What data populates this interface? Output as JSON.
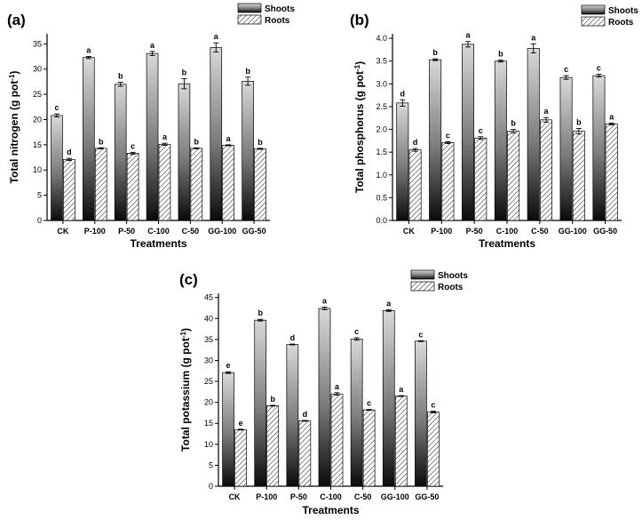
{
  "panels": [
    {
      "label": "(a)"
    },
    {
      "label": "(b)"
    },
    {
      "label": "(c)"
    }
  ],
  "colors": {
    "shoots_top": "#d9d9d9",
    "shoots_bottom": "#0a0a0a",
    "roots_hatch": "#444444",
    "axis": "#000000"
  },
  "chart_data": [
    {
      "type": "bar",
      "title": "(a)",
      "xlabel": "Treatments",
      "ylabel_main": "Total nitrogen (g pot",
      "ylabel_sup": "-1",
      "ylabel_close": ")",
      "categories": [
        "CK",
        "P-100",
        "P-50",
        "C-100",
        "C-50",
        "GG-100",
        "GG-50"
      ],
      "ylim": [
        0,
        37
      ],
      "yticks": [
        0,
        5,
        10,
        15,
        20,
        25,
        30,
        35
      ],
      "legend": [
        "Shoots",
        "Roots"
      ],
      "series": [
        {
          "name": "Shoots",
          "values": [
            20.8,
            32.3,
            27.0,
            33.1,
            27.1,
            34.3,
            27.6
          ],
          "errors": [
            0.3,
            0.2,
            0.4,
            0.4,
            1.0,
            0.9,
            0.8
          ],
          "letters": [
            "c",
            "a",
            "b",
            "a",
            "b",
            "a",
            "b"
          ]
        },
        {
          "name": "Roots",
          "values": [
            12.1,
            14.3,
            13.3,
            15.1,
            14.3,
            14.9,
            14.2
          ],
          "errors": [
            0.2,
            0.1,
            0.2,
            0.2,
            0.1,
            0.1,
            0.1
          ],
          "letters": [
            "d",
            "b",
            "c",
            "a",
            "b",
            "a",
            "b"
          ]
        }
      ]
    },
    {
      "type": "bar",
      "title": "(b)",
      "xlabel": "Treatments",
      "ylabel_main": "Total phosphorus (g pot",
      "ylabel_sup": "-1",
      "ylabel_close": ")",
      "categories": [
        "CK",
        "P-100",
        "P-50",
        "C-100",
        "C-50",
        "GG-100",
        "GG-50"
      ],
      "ylim": [
        0,
        4.1
      ],
      "yticks": [
        "0.0",
        "0.5",
        "1.0",
        "1.5",
        "2.0",
        "2.5",
        "3.0",
        "3.5",
        "4.0"
      ],
      "legend": [
        "Shoots",
        "Roots"
      ],
      "series": [
        {
          "name": "Shoots",
          "values": [
            2.58,
            3.53,
            3.87,
            3.5,
            3.78,
            3.14,
            3.18
          ],
          "errors": [
            0.07,
            0.02,
            0.06,
            0.02,
            0.1,
            0.04,
            0.03
          ],
          "letters": [
            "d",
            "b",
            "a",
            "b",
            "a",
            "c",
            "c"
          ]
        },
        {
          "name": "Roots",
          "values": [
            1.55,
            1.71,
            1.81,
            1.96,
            2.21,
            1.96,
            2.12
          ],
          "errors": [
            0.03,
            0.02,
            0.03,
            0.04,
            0.05,
            0.06,
            0.02
          ],
          "letters": [
            "d",
            "c",
            "c",
            "b",
            "a",
            "b",
            "a"
          ]
        }
      ]
    },
    {
      "type": "bar",
      "title": "(c)",
      "xlabel": "Treatments",
      "ylabel_main": "Total potassium (g pot",
      "ylabel_sup": "-1",
      "ylabel_close": ")",
      "categories": [
        "CK",
        "P-100",
        "P-50",
        "C-100",
        "C-50",
        "GG-100",
        "GG-50"
      ],
      "ylim": [
        0,
        46
      ],
      "yticks": [
        0,
        5,
        10,
        15,
        20,
        25,
        30,
        35,
        40,
        45
      ],
      "legend": [
        "Shoots",
        "Roots"
      ],
      "series": [
        {
          "name": "Shoots",
          "values": [
            27.1,
            39.6,
            33.8,
            42.4,
            35.1,
            41.9,
            34.6
          ],
          "errors": [
            0.2,
            0.2,
            0.1,
            0.3,
            0.3,
            0.2,
            0.1
          ],
          "letters": [
            "e",
            "b",
            "d",
            "a",
            "c",
            "a",
            "c"
          ]
        },
        {
          "name": "Roots",
          "values": [
            13.5,
            19.2,
            15.6,
            22.0,
            18.2,
            21.5,
            17.7
          ],
          "errors": [
            0.1,
            0.1,
            0.1,
            0.3,
            0.1,
            0.1,
            0.2
          ],
          "letters": [
            "e",
            "b",
            "d",
            "a",
            "c",
            "a",
            "c"
          ]
        }
      ]
    }
  ]
}
